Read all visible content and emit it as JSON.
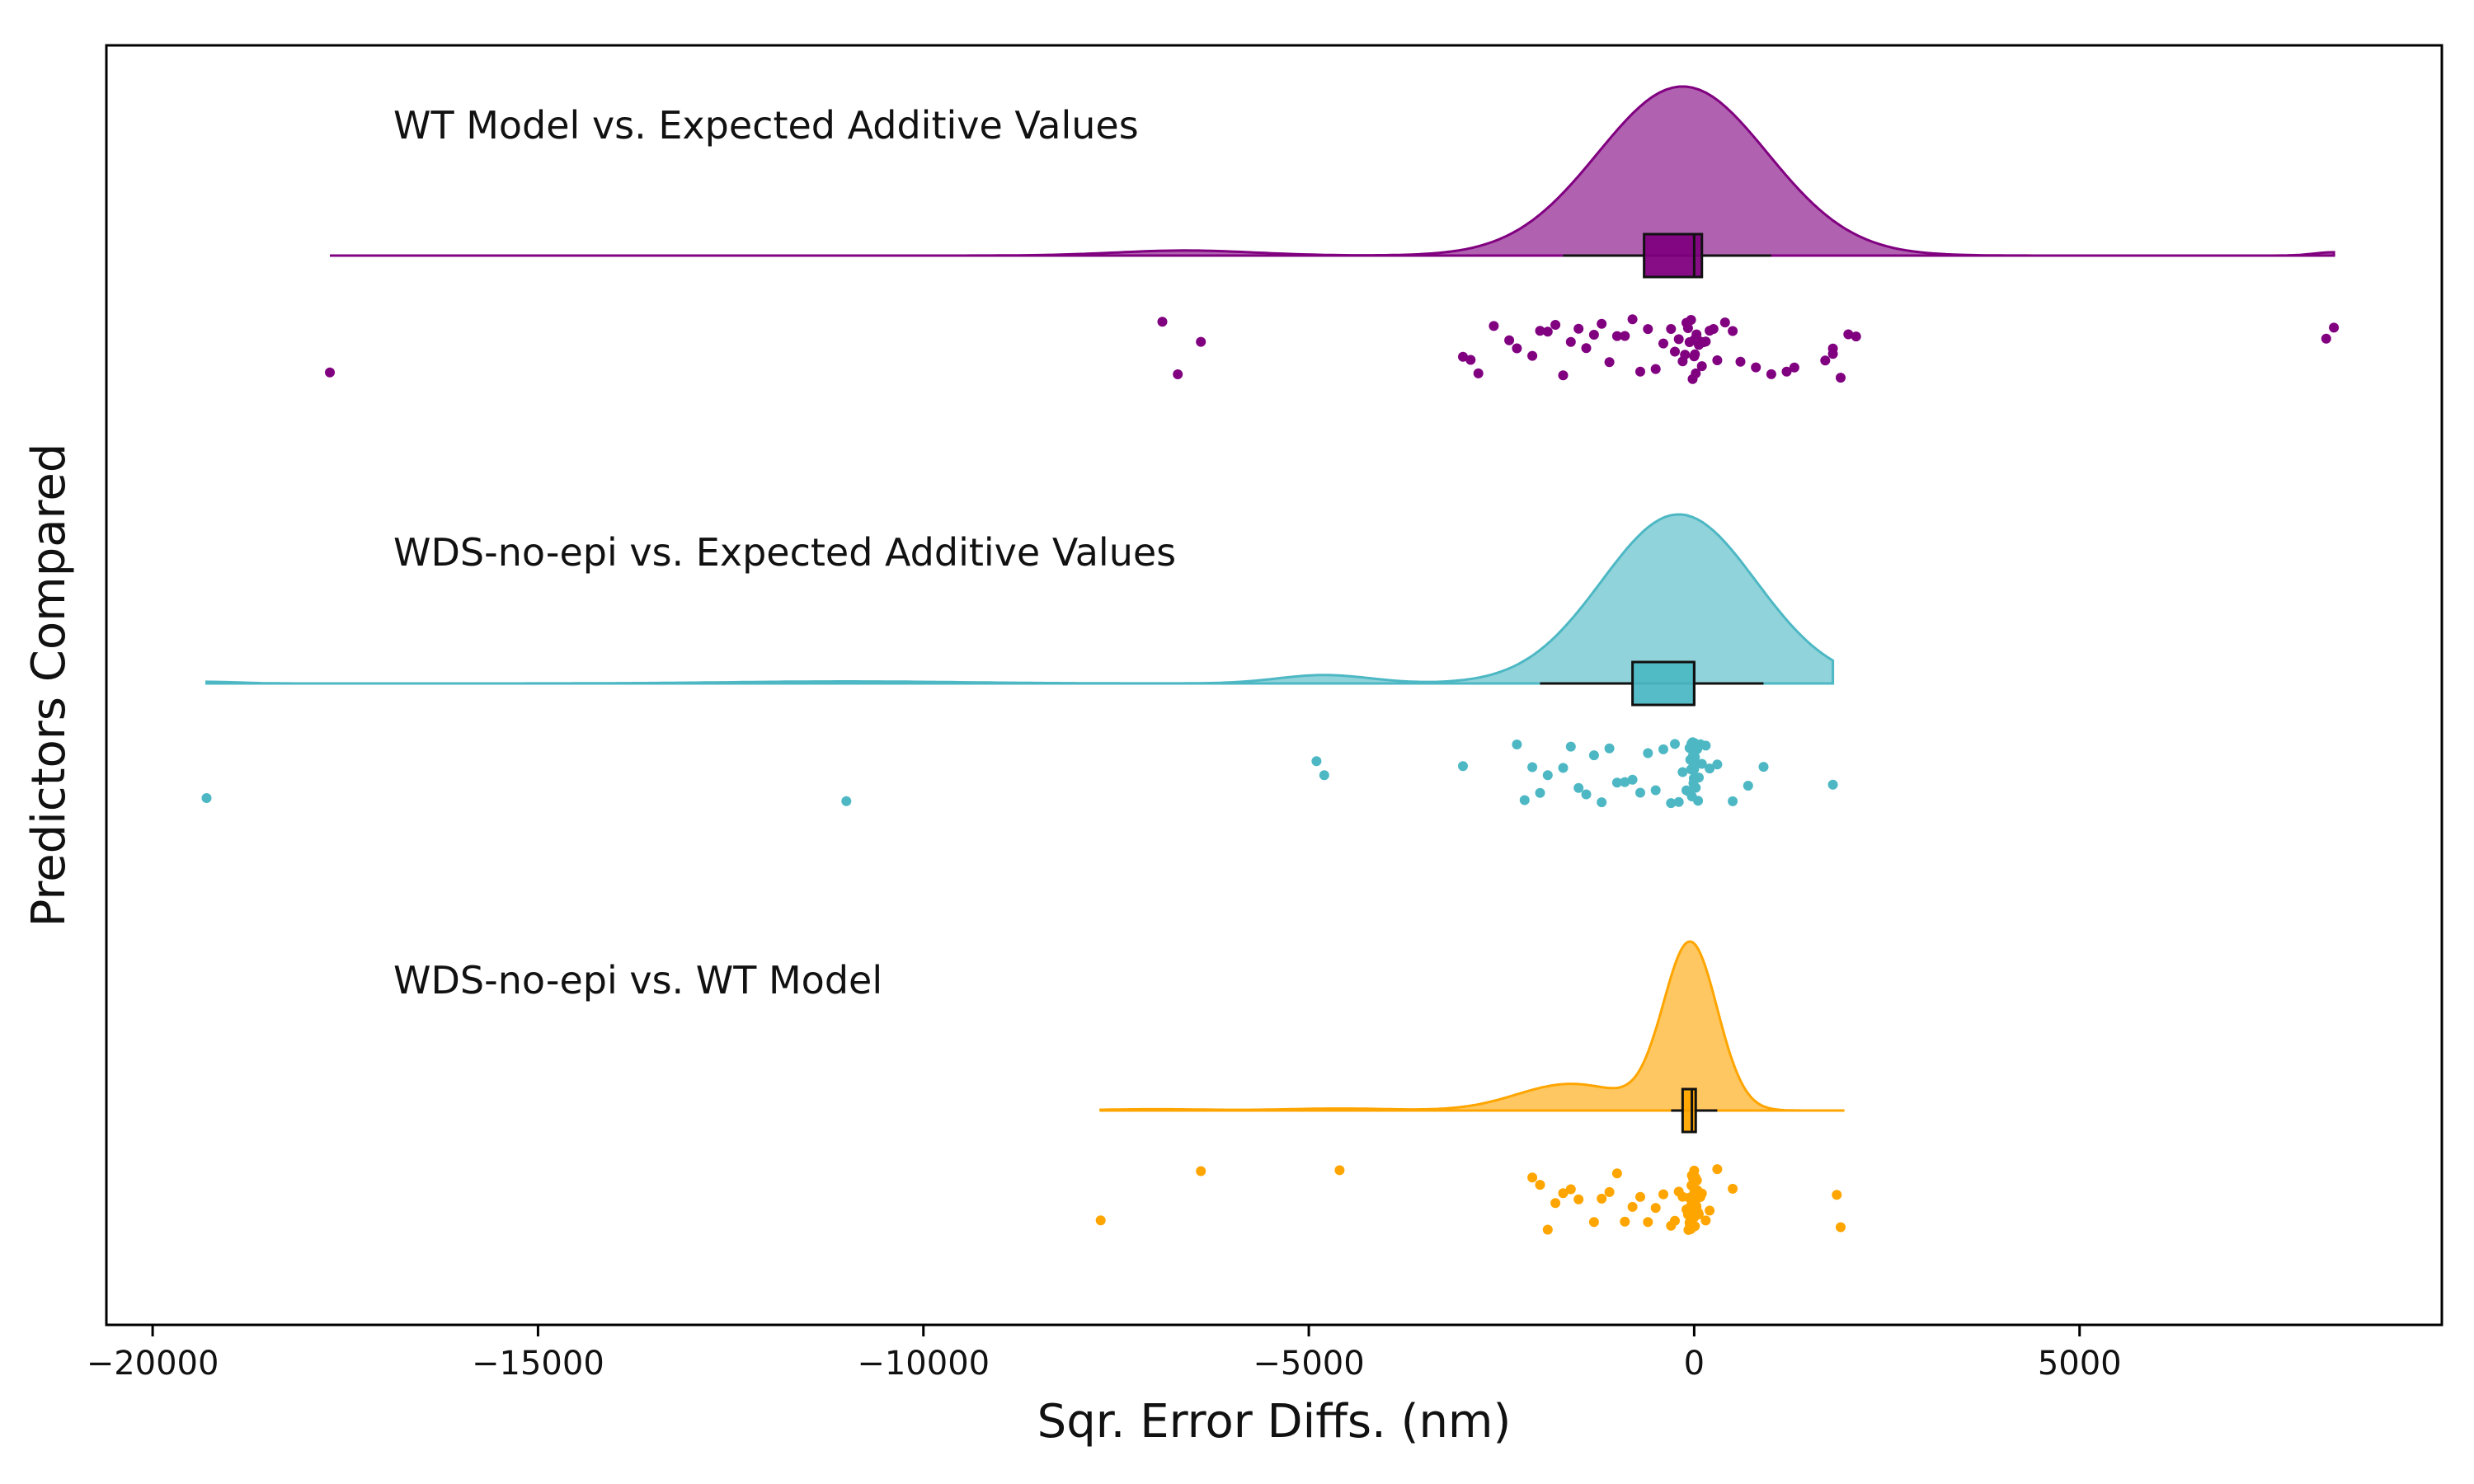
{
  "chart_data": {
    "type": "raincloud",
    "xlabel": "Sqr. Error Diffs. (nm)",
    "ylabel": "Predictors Compared",
    "xlim": [
      -20600,
      9700
    ],
    "xticks": [
      -20000,
      -15000,
      -10000,
      -5000,
      0,
      5000
    ],
    "xtick_labels": [
      "−20000",
      "−15000",
      "−10000",
      "−5000",
      "0",
      "5000"
    ],
    "grid": false,
    "groups": [
      {
        "label": "WT Model vs. Expected Additive Values",
        "color": "#800080",
        "kde_range": [
          -17700,
          8300
        ],
        "kde_components": [
          {
            "mu": -150,
            "sigma": 1100,
            "w": 1.0
          },
          {
            "mu": -6600,
            "sigma": 900,
            "w": 0.03
          },
          {
            "mu": 8300,
            "sigma": 250,
            "w": 0.02
          }
        ],
        "box": {
          "min": -1700,
          "q1": -650,
          "median": 0,
          "q3": 100,
          "max": 1000
        },
        "points": [
          -17700,
          -6700,
          -6900,
          -6400,
          -2800,
          -2600,
          -2400,
          -2300,
          -2100,
          -1900,
          -1800,
          -1700,
          -1600,
          -1500,
          -1400,
          -1300,
          -1200,
          -1100,
          -1000,
          -900,
          -800,
          -700,
          -600,
          -500,
          -400,
          -300,
          -250,
          -200,
          -150,
          -120,
          -100,
          -80,
          -60,
          -40,
          -20,
          0,
          0,
          10,
          20,
          30,
          40,
          60,
          80,
          100,
          120,
          150,
          200,
          250,
          300,
          400,
          500,
          600,
          800,
          1000,
          1200,
          1300,
          1700,
          1800,
          1800,
          1900,
          2000,
          2100,
          8300,
          8200,
          -3000,
          -2900,
          -2000
        ]
      },
      {
        "label": "WDS-no-epi vs. Expected Additive Values",
        "color": "#4DB8C4",
        "kde_range": [
          -19300,
          1800
        ],
        "kde_components": [
          {
            "mu": -200,
            "sigma": 1000,
            "w": 1.0
          },
          {
            "mu": -4800,
            "sigma": 600,
            "w": 0.05
          },
          {
            "mu": -11000,
            "sigma": 1500,
            "w": 0.012
          },
          {
            "mu": -19300,
            "sigma": 400,
            "w": 0.01
          }
        ],
        "box": {
          "min": -2000,
          "q1": -800,
          "median": 0,
          "q3": 0,
          "max": 900
        },
        "points": [
          -19300,
          -11000,
          -4900,
          -4800,
          -3000,
          -2300,
          -2200,
          -2100,
          -2000,
          -1900,
          -1700,
          -1600,
          -1500,
          -1400,
          -1300,
          -1200,
          -1100,
          -1000,
          -900,
          -800,
          -700,
          -600,
          -500,
          -400,
          -300,
          -250,
          -200,
          -150,
          -100,
          -80,
          -60,
          -40,
          -20,
          0,
          0,
          0,
          0,
          0,
          10,
          20,
          30,
          40,
          50,
          60,
          80,
          100,
          150,
          200,
          300,
          500,
          700,
          900,
          1800,
          -50,
          -30,
          -10,
          -5,
          -15,
          -25,
          -35
        ]
      },
      {
        "label": "WDS-no-epi vs. WT Model",
        "color": "#FFA500",
        "kde_range": [
          -7700,
          1950
        ],
        "kde_components": [
          {
            "mu": -50,
            "sigma": 350,
            "w": 1.0
          },
          {
            "mu": -1600,
            "sigma": 700,
            "w": 0.16
          },
          {
            "mu": -4600,
            "sigma": 700,
            "w": 0.012
          },
          {
            "mu": -7000,
            "sigma": 700,
            "w": 0.008
          }
        ],
        "box": {
          "min": -300,
          "q1": -150,
          "median": -30,
          "q3": 20,
          "max": 300
        },
        "points": [
          -7700,
          -6400,
          -4600,
          -2100,
          -2000,
          -1900,
          -1800,
          -1700,
          -1600,
          -1500,
          -1300,
          -1200,
          -1100,
          -1000,
          -900,
          -800,
          -700,
          -600,
          -500,
          -400,
          -300,
          -250,
          -200,
          -150,
          -100,
          -80,
          -60,
          -40,
          -20,
          0,
          0,
          0,
          0,
          10,
          20,
          30,
          40,
          50,
          60,
          80,
          100,
          150,
          200,
          300,
          500,
          1850,
          1900,
          -50,
          -30,
          -10,
          -5,
          -15,
          -25,
          -35,
          -45,
          -55,
          -65,
          -75,
          5,
          15,
          25,
          35
        ]
      }
    ]
  }
}
